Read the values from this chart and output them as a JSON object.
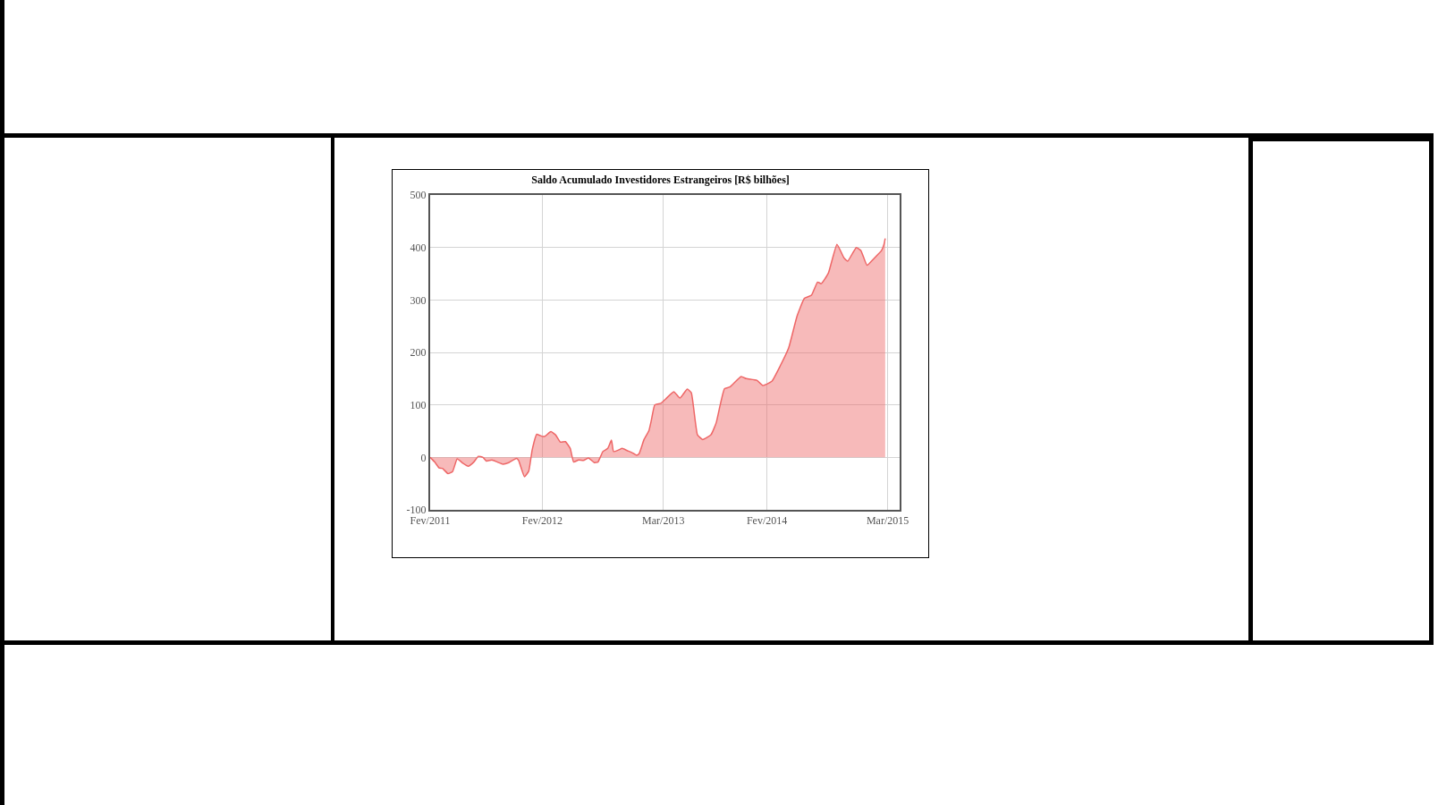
{
  "chart_data": {
    "type": "area",
    "title": "Saldo Acumulado Investidores Estrangeiros [R$ bilhões]",
    "series": [
      {
        "color": "#ee6666",
        "x": [
          "2011-02-01",
          "2011-02-16",
          "2011-03-02",
          "2011-03-13",
          "2011-03-31",
          "2011-04-15",
          "2011-04-30",
          "2011-05-18",
          "2011-06-05",
          "2011-06-23",
          "2011-07-08",
          "2011-07-23",
          "2011-08-03",
          "2011-08-21",
          "2011-09-08",
          "2011-09-26",
          "2011-10-15",
          "2011-11-09",
          "2011-11-16",
          "2011-12-05",
          "2011-12-19",
          "2011-12-30",
          "2012-01-14",
          "2012-02-01",
          "2012-02-09",
          "2012-02-29",
          "2012-03-15",
          "2012-03-31",
          "2012-04-16",
          "2012-05-02",
          "2012-05-13",
          "2012-05-29",
          "2012-06-14",
          "2012-06-30",
          "2012-07-19",
          "2012-07-31",
          "2012-08-16",
          "2012-09-01",
          "2012-09-13",
          "2012-09-20",
          "2012-10-06",
          "2012-10-18",
          "2012-11-03",
          "2012-11-19",
          "2012-12-04",
          "2012-12-12",
          "2012-12-28",
          "2013-01-13",
          "2013-01-21",
          "2013-02-01",
          "2013-02-21",
          "2013-03-08",
          "2013-04-04",
          "2013-04-24",
          "2013-05-18",
          "2013-05-31",
          "2013-06-20",
          "2013-07-07",
          "2013-08-03",
          "2013-08-20",
          "2013-09-02",
          "2013-09-16",
          "2013-10-03",
          "2013-11-09",
          "2013-11-26",
          "2013-12-30",
          "2014-01-19",
          "2014-02-17",
          "2014-03-16",
          "2014-04-13",
          "2014-05-10",
          "2014-06-03",
          "2014-06-26",
          "2014-07-16",
          "2014-07-28",
          "2014-08-20",
          "2014-09-17",
          "2014-10-10",
          "2014-10-22",
          "2014-11-19",
          "2014-12-04",
          "2014-12-24",
          "2015-01-12",
          "2015-02-09",
          "2015-02-17",
          "2015-02-21"
        ],
        "values": [
          0,
          -9,
          -20,
          -21,
          -31,
          -27,
          -3,
          -11,
          -17,
          -9,
          2,
          0,
          -7,
          -5,
          -9,
          -13,
          -10,
          -2,
          -6,
          -37,
          -26,
          14,
          44,
          40,
          40,
          49,
          43,
          29,
          30,
          17,
          -9,
          -5,
          -6,
          -1,
          -10,
          -9,
          11,
          17,
          33,
          11,
          14,
          17,
          13,
          9,
          4,
          7,
          34,
          51,
          71,
          100,
          103,
          111,
          125,
          113,
          130,
          123,
          43,
          34,
          43,
          66,
          100,
          131,
          134,
          154,
          150,
          147,
          137,
          145,
          174,
          209,
          269,
          303,
          309,
          334,
          331,
          351,
          406,
          380,
          374,
          400,
          394,
          366,
          377,
          394,
          406,
          417
        ]
      }
    ],
    "xlim": [
      "2011-02-01",
      "2015-04-09"
    ],
    "xticks": [
      {
        "value": "2011-02-01",
        "label": "Fev/2011"
      },
      {
        "value": "2012-02-01",
        "label": "Fev/2012"
      },
      {
        "value": "2013-03-01",
        "label": "Mar/2013"
      },
      {
        "value": "2014-02-01",
        "label": "Fev/2014"
      },
      {
        "value": "2015-03-01",
        "label": "Mar/2015"
      }
    ],
    "ylim": [
      -100,
      500
    ],
    "yticks": [
      -100,
      0,
      100,
      200,
      300,
      400,
      500
    ],
    "grid": true
  }
}
